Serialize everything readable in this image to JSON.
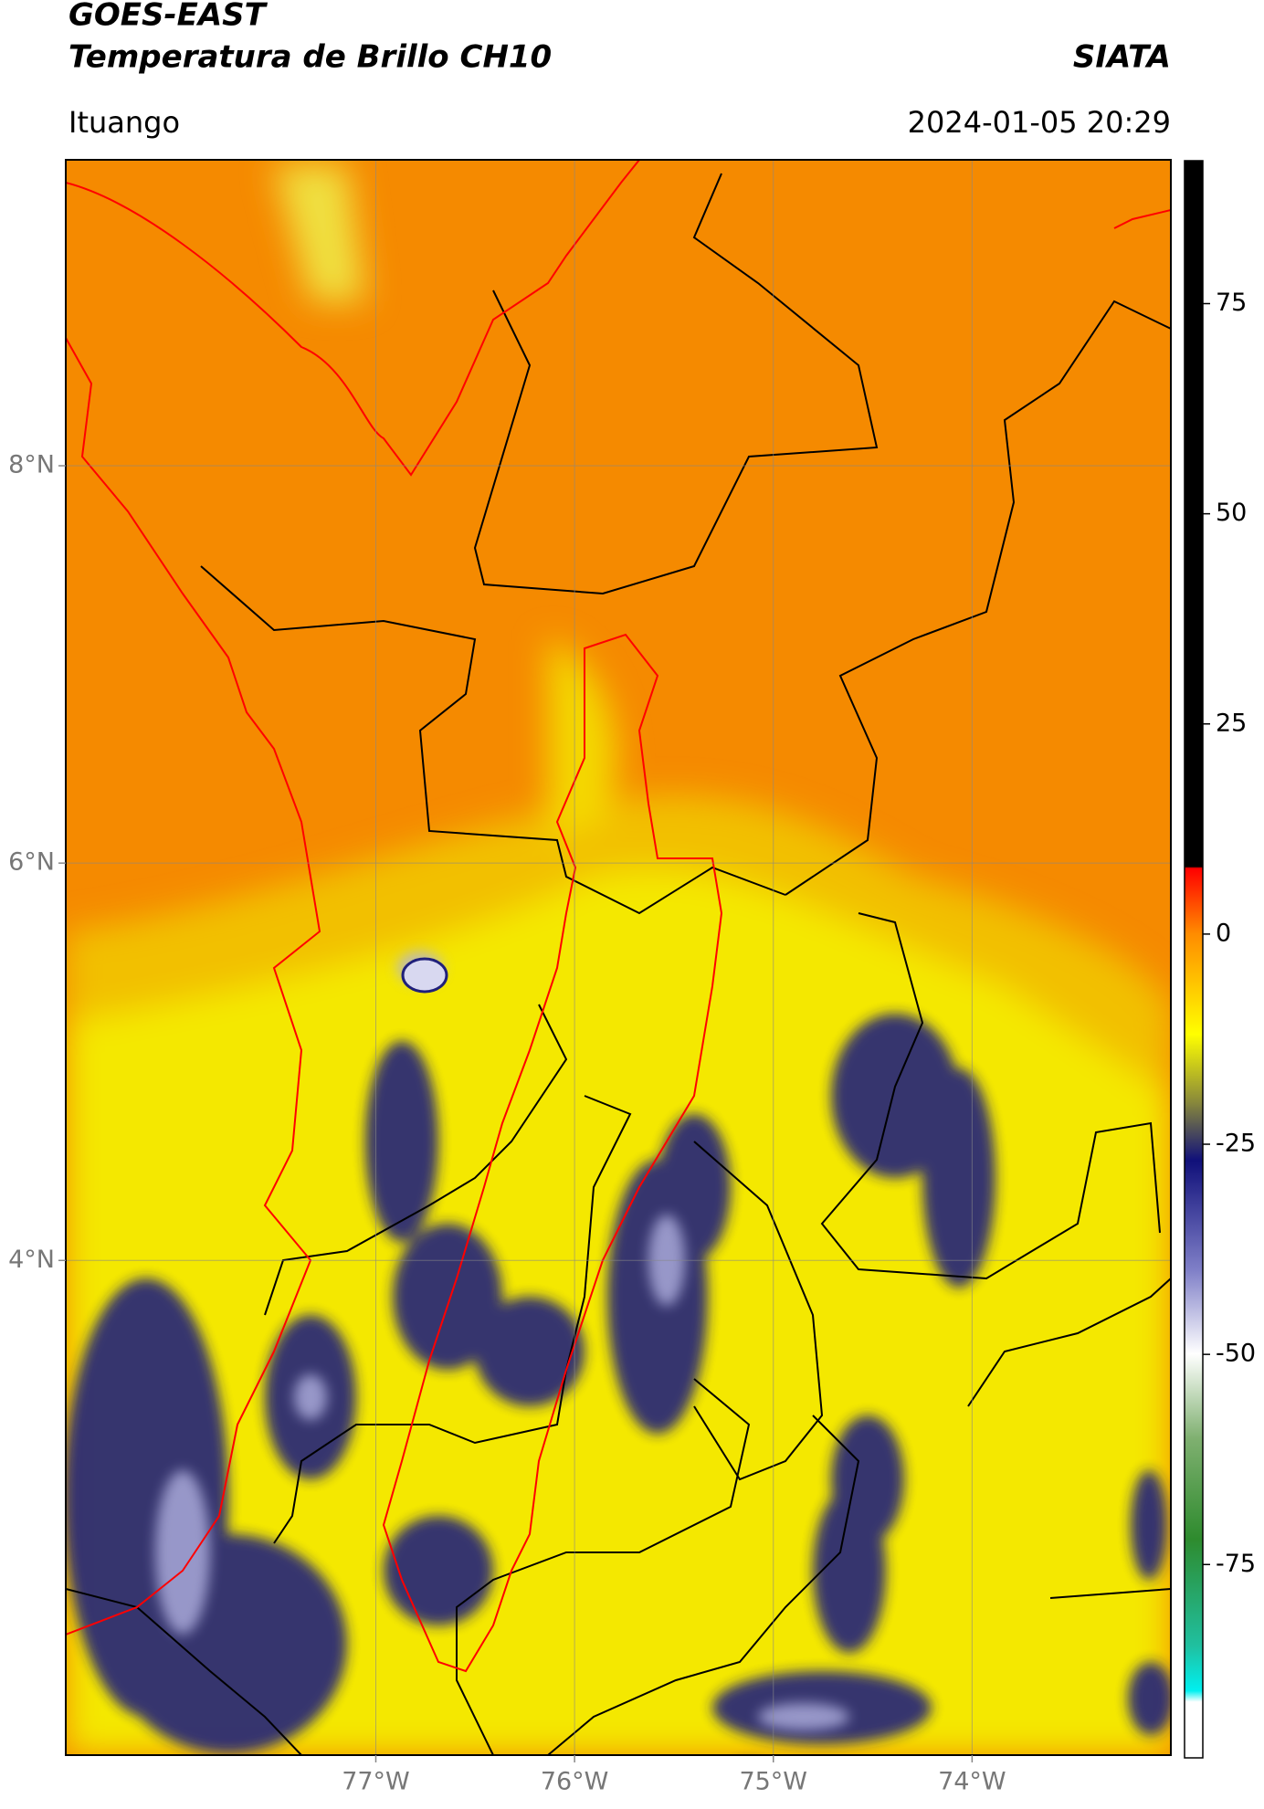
{
  "header": {
    "title": "GOES-EAST",
    "subtitle": "Temperatura de Brillo CH10",
    "source": "SIATA",
    "location": "Ituango",
    "datetime": "2024-01-05 20:29"
  },
  "map": {
    "lon_range": [
      -78.56,
      -73.0
    ],
    "lat_range": [
      1.51,
      9.54
    ],
    "lon_ticks": [
      {
        "value": -77,
        "label": "77°W"
      },
      {
        "value": -76,
        "label": "76°W"
      },
      {
        "value": -75,
        "label": "75°W"
      },
      {
        "value": -74,
        "label": "74°W"
      }
    ],
    "lat_ticks": [
      {
        "value": 8,
        "label": "8°N"
      },
      {
        "value": 6,
        "label": "6°N"
      },
      {
        "value": 4,
        "label": "4°N"
      }
    ],
    "grid": true
  },
  "colorbar": {
    "range": [
      -98,
      92
    ],
    "ticks": [
      75,
      50,
      25,
      0,
      -25,
      -50,
      -75
    ]
  }
}
